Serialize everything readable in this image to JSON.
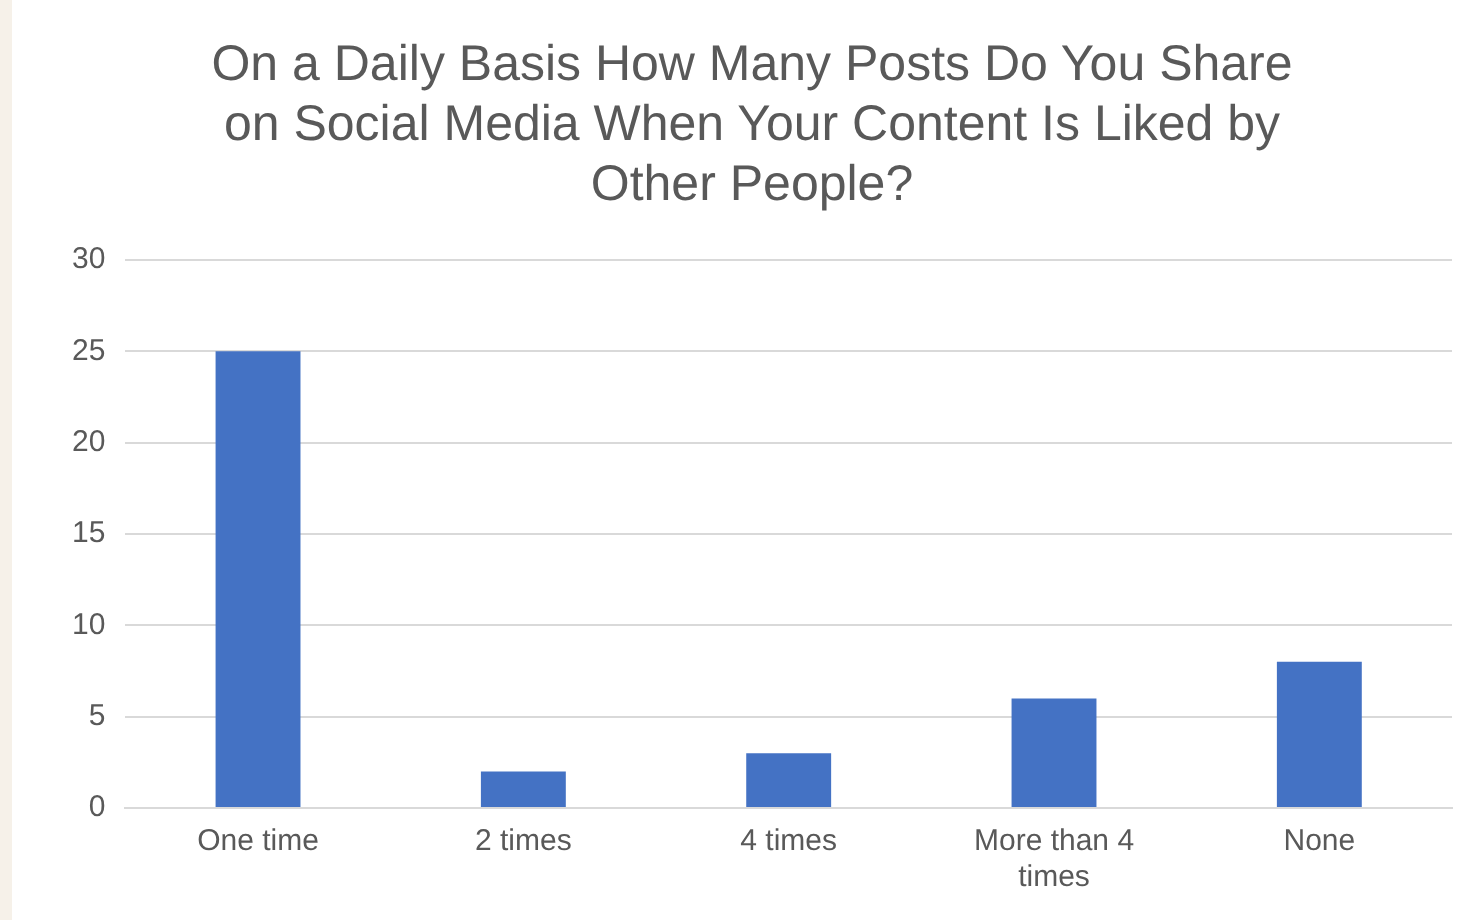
{
  "chart_data": {
    "type": "bar",
    "title": "On a Daily Basis How Many Posts Do You Share on Social Media When Your Content Is Liked by Other People?",
    "categories": [
      "One time",
      "2 times",
      "4 times",
      "More than 4 times",
      "None"
    ],
    "values": [
      25,
      2,
      3,
      6,
      8
    ],
    "color": "#4472c4",
    "ylim": [
      0,
      30
    ],
    "yticks": [
      0,
      5,
      10,
      15,
      20,
      25,
      30
    ],
    "grid": "y",
    "legend": false
  }
}
